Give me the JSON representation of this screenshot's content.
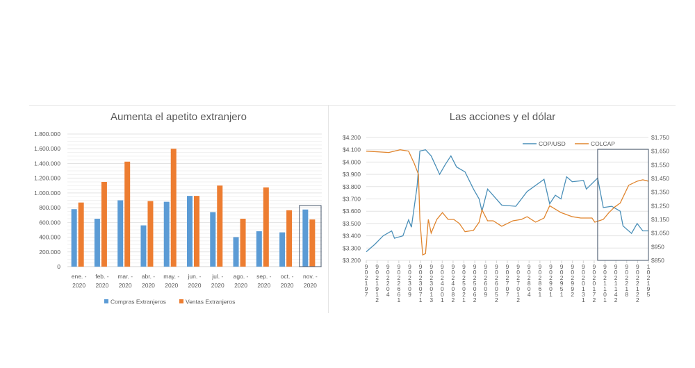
{
  "chart_data": [
    {
      "type": "bar",
      "title": "Aumenta el apetito extranjero",
      "categories": [
        [
          "ene. -",
          "2020"
        ],
        [
          "feb. -",
          "2020"
        ],
        [
          "mar. -",
          "2020"
        ],
        [
          "abr. -",
          "2020"
        ],
        [
          "may. -",
          "2020"
        ],
        [
          "jun. -",
          "2020"
        ],
        [
          "jul. -",
          "2020"
        ],
        [
          "ago. -",
          "2020"
        ],
        [
          "sep. -",
          "2020"
        ],
        [
          "oct. -",
          "2020"
        ],
        [
          "nov. -",
          "2020"
        ]
      ],
      "ylim": [
        0,
        1800000
      ],
      "yticks": [
        "0",
        "200.000",
        "400.000",
        "600.000",
        "800.000",
        "1.000.000",
        "1.200.000",
        "1.400.000",
        "1.600.000",
        "1.800.000"
      ],
      "grid": true,
      "legend": "bottom",
      "highlight_category": "nov. - 2020",
      "series": [
        {
          "name": "Compras Extranjeros",
          "color": "#5b9bd5",
          "values": [
            780000,
            650000,
            900000,
            560000,
            880000,
            960000,
            740000,
            400000,
            480000,
            465000,
            775000
          ]
        },
        {
          "name": "Ventas Extranjeros",
          "color": "#ed7d31",
          "values": [
            870000,
            1150000,
            1425000,
            890000,
            1600000,
            960000,
            1100000,
            650000,
            1075000,
            765000,
            640000
          ]
        }
      ]
    },
    {
      "type": "line",
      "title": "Las acciones y el dólar",
      "ylim": [
        3200,
        4200
      ],
      "yticks": [
        "$3.200",
        "$3.300",
        "$3.400",
        "$3.500",
        "$3.600",
        "$3.700",
        "$3.800",
        "$3.900",
        "$4.000",
        "$4.100",
        "$4.200"
      ],
      "y2lim": [
        850,
        1750
      ],
      "y2ticks": [
        "$850",
        "$950",
        "$1.050",
        "$1.150",
        "$1.250",
        "$1.350",
        "$1.450",
        "$1.550",
        "$1.650",
        "$1.750"
      ],
      "xticks": [
        "902197",
        "9021912",
        "902204",
        "9022661",
        "902309",
        "9023071",
        "9023013",
        "9024001",
        "9024082",
        "9025021",
        "9025062",
        "902609",
        "9026052",
        "902707",
        "9027012",
        "902804",
        "902861",
        "902901",
        "902951",
        "902992",
        "9020131",
        "9020172",
        "9021101",
        "9021142",
        "902218",
        "9022122",
        "102195"
      ],
      "grid": true,
      "legend": "top-right",
      "series": [
        {
          "name": "COP/USD",
          "axis": "left",
          "color": "#4a8fb8",
          "x": [
            0,
            0.03,
            0.06,
            0.09,
            0.1,
            0.13,
            0.15,
            0.16,
            0.18,
            0.19,
            0.21,
            0.23,
            0.26,
            0.28,
            0.3,
            0.32,
            0.35,
            0.38,
            0.4,
            0.41,
            0.43,
            0.48,
            0.53,
            0.57,
            0.63,
            0.65,
            0.67,
            0.69,
            0.71,
            0.73,
            0.77,
            0.78,
            0.82,
            0.84,
            0.87,
            0.9,
            0.91,
            0.94,
            0.96,
            0.98,
            1.0
          ],
          "y": [
            3270,
            3330,
            3400,
            3440,
            3380,
            3400,
            3530,
            3470,
            3800,
            4090,
            4100,
            4050,
            3900,
            3980,
            4050,
            3960,
            3920,
            3780,
            3700,
            3600,
            3780,
            3650,
            3640,
            3760,
            3860,
            3660,
            3730,
            3700,
            3880,
            3840,
            3850,
            3780,
            3870,
            3630,
            3640,
            3600,
            3480,
            3420,
            3500,
            3440,
            3440
          ]
        },
        {
          "name": "COLCAP",
          "axis": "right",
          "color": "#e0852e",
          "x": [
            0,
            0.08,
            0.12,
            0.15,
            0.17,
            0.185,
            0.19,
            0.2,
            0.21,
            0.22,
            0.23,
            0.25,
            0.27,
            0.29,
            0.31,
            0.33,
            0.35,
            0.38,
            0.4,
            0.41,
            0.43,
            0.45,
            0.48,
            0.52,
            0.55,
            0.57,
            0.6,
            0.63,
            0.65,
            0.69,
            0.73,
            0.76,
            0.8,
            0.81,
            0.84,
            0.86,
            0.88,
            0.9,
            0.93,
            0.96,
            0.98,
            1.0
          ],
          "y": [
            1650,
            1640,
            1660,
            1650,
            1560,
            1480,
            1150,
            890,
            900,
            1150,
            1050,
            1150,
            1200,
            1150,
            1150,
            1120,
            1060,
            1070,
            1130,
            1220,
            1140,
            1140,
            1100,
            1140,
            1150,
            1170,
            1130,
            1160,
            1250,
            1200,
            1170,
            1160,
            1160,
            1130,
            1150,
            1200,
            1240,
            1270,
            1400,
            1430,
            1440,
            1430
          ]
        }
      ],
      "highlight_range": [
        0.82,
        1.0
      ]
    }
  ]
}
